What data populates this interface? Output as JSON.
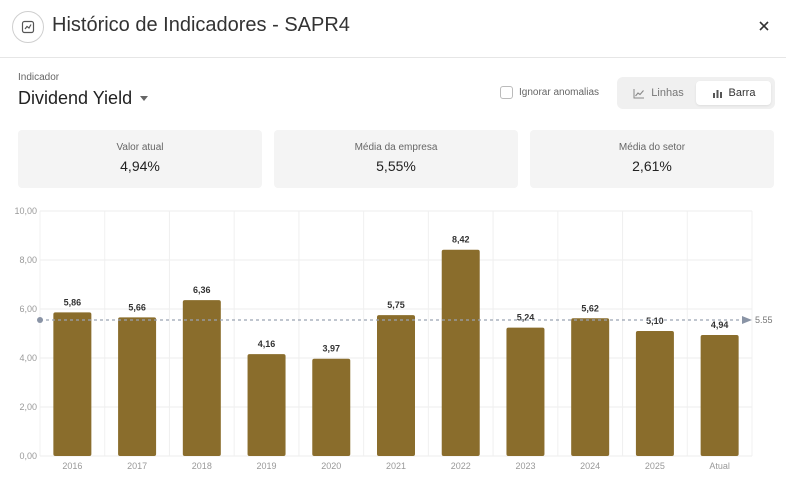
{
  "header": {
    "title": "Histórico de Indicadores - SAPR4",
    "icon": "chart-icon",
    "close_icon": "close-icon"
  },
  "indicator": {
    "label": "Indicador",
    "value": "Dividend Yield"
  },
  "filters": {
    "ignore_anomalies_label": "Ignorar anomalias",
    "ignore_anomalies_checked": false
  },
  "view_toggle": {
    "lines_label": "Linhas",
    "bars_label": "Barra",
    "active": "Barra"
  },
  "cards": [
    {
      "label": "Valor atual",
      "value": "4,94%"
    },
    {
      "label": "Média da empresa",
      "value": "5,55%"
    },
    {
      "label": "Média do setor",
      "value": "2,61%"
    }
  ],
  "chart_data": {
    "type": "bar",
    "categories": [
      "2016",
      "2017",
      "2018",
      "2019",
      "2020",
      "2021",
      "2022",
      "2023",
      "2024",
      "2025",
      "Atual"
    ],
    "values": [
      5.86,
      5.66,
      6.36,
      4.16,
      3.97,
      5.75,
      8.42,
      5.24,
      5.62,
      5.1,
      4.94
    ],
    "value_labels": [
      "5,86",
      "5,66",
      "6,36",
      "4,16",
      "3,97",
      "5,75",
      "8,42",
      "5,24",
      "5,62",
      "5,10",
      "4,94"
    ],
    "ylim": [
      0,
      10
    ],
    "yticks": [
      0,
      2,
      4,
      6,
      8,
      10
    ],
    "ytick_labels": [
      "0,00",
      "2,00",
      "4,00",
      "6,00",
      "8,00",
      "10,00"
    ],
    "reference_line": {
      "value": 5.55,
      "label": "5.55"
    },
    "bar_color": "#8a6d2c",
    "grid": true,
    "xlabel": "",
    "ylabel": ""
  }
}
